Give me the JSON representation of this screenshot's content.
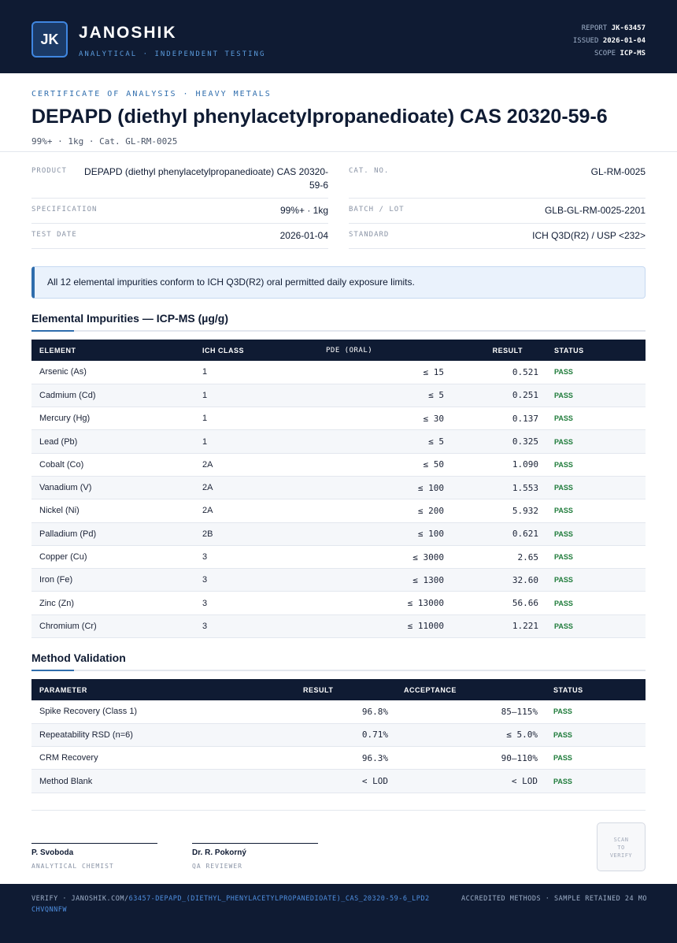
{
  "header": {
    "logo_initials": "JK",
    "brand": "JANOSHIK",
    "tagline": "ANALYTICAL · INDEPENDENT TESTING",
    "report_label": "REPORT",
    "report_value": "JK-63457",
    "issued_label": "ISSUED",
    "issued_value": "2026-01-04",
    "scope_label": "SCOPE",
    "scope_value": "ICP-MS"
  },
  "title_block": {
    "kicker": "CERTIFICATE OF ANALYSIS · HEAVY METALS",
    "title": "DEPAPD (diethyl phenylacetylpropanedioate) CAS 20320-59-6",
    "subtitle": "99%+ · 1kg  ·  Cat. GL-RM-0025"
  },
  "info": {
    "product_label": "PRODUCT",
    "product_value": "DEPAPD (diethyl phenylacetylpropanedioate) CAS 20320-59-6",
    "spec_label": "SPECIFICATION",
    "spec_value": "99%+ · 1kg",
    "test_date_label": "TEST DATE",
    "test_date_value": "2026-01-04",
    "cat_label": "CAT. NO.",
    "cat_value": "GL-RM-0025",
    "batch_label": "BATCH / LOT",
    "batch_value": "GLB-GL-RM-0025-2201",
    "standard_label": "STANDARD",
    "standard_value": "ICH Q3D(R2) / USP <232>"
  },
  "banner": "All 12 elemental impurities conform to ICH Q3D(R2) oral permitted daily exposure limits.",
  "impurities": {
    "heading": "Elemental Impurities — ICP-MS (µg/g)",
    "columns": [
      "ELEMENT",
      "ICH CLASS",
      "PDE (ORAL)",
      "RESULT",
      "STATUS"
    ],
    "rows": [
      {
        "element": "Arsenic (As)",
        "class": "1",
        "pde": "≤ 15",
        "result": "0.521",
        "status": "PASS"
      },
      {
        "element": "Cadmium (Cd)",
        "class": "1",
        "pde": "≤ 5",
        "result": "0.251",
        "status": "PASS"
      },
      {
        "element": "Mercury (Hg)",
        "class": "1",
        "pde": "≤ 30",
        "result": "0.137",
        "status": "PASS"
      },
      {
        "element": "Lead (Pb)",
        "class": "1",
        "pde": "≤ 5",
        "result": "0.325",
        "status": "PASS"
      },
      {
        "element": "Cobalt (Co)",
        "class": "2A",
        "pde": "≤ 50",
        "result": "1.090",
        "status": "PASS"
      },
      {
        "element": "Vanadium (V)",
        "class": "2A",
        "pde": "≤ 100",
        "result": "1.553",
        "status": "PASS"
      },
      {
        "element": "Nickel (Ni)",
        "class": "2A",
        "pde": "≤ 200",
        "result": "5.932",
        "status": "PASS"
      },
      {
        "element": "Palladium (Pd)",
        "class": "2B",
        "pde": "≤ 100",
        "result": "0.621",
        "status": "PASS"
      },
      {
        "element": "Copper (Cu)",
        "class": "3",
        "pde": "≤ 3000",
        "result": "2.65",
        "status": "PASS"
      },
      {
        "element": "Iron (Fe)",
        "class": "3",
        "pde": "≤ 1300",
        "result": "32.60",
        "status": "PASS"
      },
      {
        "element": "Zinc (Zn)",
        "class": "3",
        "pde": "≤ 13000",
        "result": "56.66",
        "status": "PASS"
      },
      {
        "element": "Chromium (Cr)",
        "class": "3",
        "pde": "≤ 11000",
        "result": "1.221",
        "status": "PASS"
      }
    ]
  },
  "validation": {
    "heading": "Method Validation",
    "columns": [
      "PARAMETER",
      "RESULT",
      "ACCEPTANCE",
      "STATUS"
    ],
    "rows": [
      {
        "parameter": "Spike Recovery (Class 1)",
        "result": "96.8%",
        "acceptance": "85–115%",
        "status": "PASS"
      },
      {
        "parameter": "Repeatability RSD (n=6)",
        "result": "0.71%",
        "acceptance": "≤ 5.0%",
        "status": "PASS"
      },
      {
        "parameter": "CRM Recovery",
        "result": "96.3%",
        "acceptance": "90–110%",
        "status": "PASS"
      },
      {
        "parameter": "Method Blank",
        "result": "< LOD",
        "acceptance": "< LOD",
        "status": "PASS"
      }
    ]
  },
  "signatures": [
    {
      "name": "P. Svoboda",
      "role": "ANALYTICAL CHEMIST"
    },
    {
      "name": "Dr. R. Pokorný",
      "role": "QA REVIEWER"
    }
  ],
  "qr": {
    "line1": "SCAN",
    "line2": "TO",
    "line3": "VERIFY"
  },
  "footer": {
    "verify_prefix": "VERIFY · JANOSHIK.COM/",
    "verify_path": "63457-DEPAPD_(DIETHYL_PHENYLACETYLPROPANEDIOATE)_CAS_20320-59-6_LPD2CHVQNNFW",
    "right_text": "ACCREDITED METHODS · SAMPLE RETAINED 24 MO"
  },
  "colors": {
    "navy": "#0f1b33",
    "accent": "#2f6dad",
    "pass": "#1e7b3a"
  }
}
